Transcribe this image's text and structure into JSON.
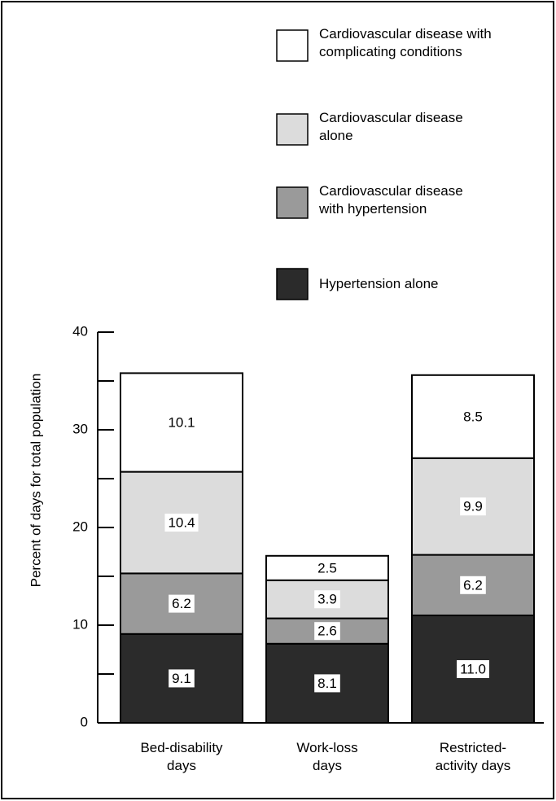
{
  "chart_data": {
    "type": "stacked_bar",
    "categories": [
      "Bed-disability\ndays",
      "Work-loss\ndays",
      "Restricted-\nactivity days"
    ],
    "series": [
      {
        "name": "Hypertension alone",
        "color": "#2b2b2b",
        "values": [
          9.1,
          8.1,
          11.0
        ],
        "value_labels": [
          "9.1",
          "8.1",
          "11.0"
        ]
      },
      {
        "name": "Cardiovascular disease\nwith hypertension",
        "color": "#9a9a9a",
        "values": [
          6.2,
          2.6,
          6.2
        ]
      },
      {
        "name": "Cardiovascular disease\nalone",
        "color": "#dcdcdc",
        "values": [
          10.4,
          3.9,
          9.9
        ]
      },
      {
        "name": "Cardiovascular disease with\ncomplicating conditions",
        "color": "#ffffff",
        "values": [
          10.1,
          2.5,
          8.5
        ]
      }
    ],
    "y_label": "Percent of days for total population",
    "ylim": [
      0,
      40
    ],
    "yticks": [
      0,
      10,
      20,
      30,
      40
    ],
    "yminor_ticks": [
      5,
      15,
      25,
      35
    ],
    "legend": "top-right"
  }
}
